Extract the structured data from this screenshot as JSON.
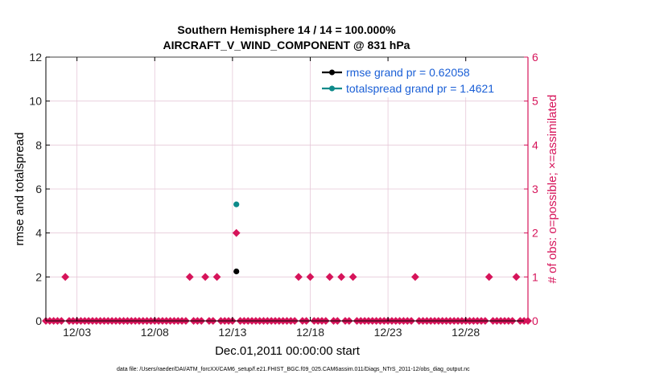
{
  "chart_data": {
    "type": "scatter",
    "title": "Southern Hemisphere 14 / 14 = 100.000%",
    "subtitle": "AIRCRAFT_V_WIND_COMPONENT @ 831 hPa",
    "xlabel": "Dec.01,2011 00:00:00 start",
    "ylabel_left": "rmse and totalspread",
    "ylabel_right": "# of obs: o=possible; ×=assimilated",
    "x_range_days": [
      0,
      31
    ],
    "ylim_left": [
      0,
      12
    ],
    "ylim_right": [
      0,
      6
    ],
    "x_ticks": [
      {
        "day": 2,
        "label": "12/03"
      },
      {
        "day": 7,
        "label": "12/08"
      },
      {
        "day": 12,
        "label": "12/13"
      },
      {
        "day": 17,
        "label": "12/18"
      },
      {
        "day": 22,
        "label": "12/23"
      },
      {
        "day": 27,
        "label": "12/28"
      }
    ],
    "y_ticks_left": [
      "0",
      "2",
      "4",
      "6",
      "8",
      "10",
      "12"
    ],
    "y_ticks_right": [
      "0",
      "1",
      "2",
      "3",
      "4",
      "5",
      "6"
    ],
    "grid": true,
    "legend_position": "top-right",
    "colors": {
      "rmse": "#000000",
      "totalspread": "#0e8a8a",
      "obs": "#d6145a",
      "legend_text": "#1a5fd6",
      "grid": "#e6c8d8"
    },
    "series": [
      {
        "name": "rmse grand pr = 0.62058",
        "axis": "left",
        "points": [
          {
            "x": 12.25,
            "y": 2.25
          }
        ]
      },
      {
        "name": "totalspread grand pr = 1.4621",
        "axis": "left",
        "points": [
          {
            "x": 12.25,
            "y": 5.3
          }
        ]
      }
    ],
    "obs_counts": {
      "axis": "right",
      "x_step_days": 0.25,
      "nonzero": [
        {
          "x": 1.25,
          "y": 1
        },
        {
          "x": 9.25,
          "y": 1
        },
        {
          "x": 10.25,
          "y": 1
        },
        {
          "x": 11.0,
          "y": 1
        },
        {
          "x": 12.25,
          "y": 2
        },
        {
          "x": 16.25,
          "y": 1
        },
        {
          "x": 17.0,
          "y": 1
        },
        {
          "x": 18.25,
          "y": 1
        },
        {
          "x": 19.0,
          "y": 1
        },
        {
          "x": 19.75,
          "y": 1
        },
        {
          "x": 23.75,
          "y": 1
        },
        {
          "x": 28.5,
          "y": 1
        },
        {
          "x": 30.25,
          "y": 1
        }
      ]
    },
    "footer": "data file: /Users/raeder/DAI/ATM_forcXX/CAM6_setup/f.e21.FHIST_BGC.f09_025.CAM6assim.011/Diags_NTrS_2011-12/obs_diag_output.nc"
  }
}
